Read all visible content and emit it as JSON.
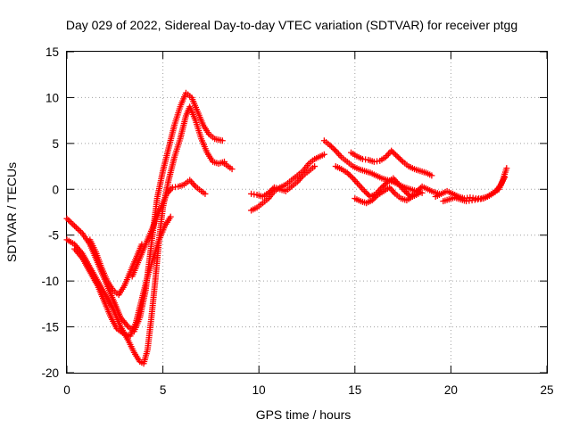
{
  "chart_data": {
    "type": "scatter",
    "title": "Day 029 of 2022, Sidereal Day-to-day VTEC variation (SDTVAR) for receiver ptgg",
    "xlabel": "GPS time / hours",
    "ylabel": "SDTVAR / TECUs",
    "xlim": [
      0,
      25
    ],
    "ylim": [
      -20,
      15
    ],
    "x_ticks": [
      "0",
      "5",
      "10",
      "15",
      "20",
      "25"
    ],
    "y_ticks": [
      "-20",
      "-15",
      "-10",
      "-5",
      "0",
      "5",
      "10",
      "15"
    ],
    "grid": true,
    "marker": "+",
    "series_color": "#ff0000",
    "segments": [
      {
        "name": "arc-1",
        "points": [
          [
            0.0,
            -3.2
          ],
          [
            0.4,
            -4.0
          ],
          [
            0.8,
            -4.8
          ],
          [
            1.2,
            -6.0
          ],
          [
            1.6,
            -8.0
          ],
          [
            2.0,
            -10.0
          ],
          [
            2.4,
            -12.0
          ],
          [
            2.8,
            -14.0
          ],
          [
            3.2,
            -15.0
          ],
          [
            3.5,
            -15.5
          ],
          [
            3.8,
            -14.0
          ],
          [
            4.1,
            -11.0
          ],
          [
            4.4,
            -6.0
          ],
          [
            4.7,
            -1.0
          ],
          [
            5.0,
            2.0
          ],
          [
            5.3,
            4.5
          ],
          [
            5.6,
            7.0
          ],
          [
            5.9,
            9.0
          ],
          [
            6.2,
            10.5
          ],
          [
            6.5,
            10.0
          ],
          [
            6.8,
            8.5
          ],
          [
            7.1,
            7.0
          ],
          [
            7.4,
            6.0
          ],
          [
            7.7,
            5.5
          ],
          [
            8.1,
            5.3
          ]
        ]
      },
      {
        "name": "arc-2",
        "points": [
          [
            0.0,
            -5.5
          ],
          [
            0.4,
            -6.0
          ],
          [
            0.8,
            -7.0
          ],
          [
            1.2,
            -8.5
          ],
          [
            1.6,
            -10.0
          ],
          [
            2.0,
            -11.5
          ],
          [
            2.4,
            -13.0
          ],
          [
            2.8,
            -15.0
          ],
          [
            3.2,
            -16.5
          ],
          [
            3.5,
            -17.8
          ],
          [
            3.8,
            -18.8
          ],
          [
            4.0,
            -19.0
          ],
          [
            4.2,
            -17.5
          ],
          [
            4.4,
            -14.0
          ],
          [
            4.6,
            -10.0
          ],
          [
            4.8,
            -5.5
          ],
          [
            5.0,
            -2.0
          ],
          [
            5.3,
            1.0
          ],
          [
            5.6,
            3.5
          ],
          [
            5.9,
            5.5
          ],
          [
            6.2,
            8.0
          ],
          [
            6.4,
            9.0
          ],
          [
            6.7,
            7.5
          ],
          [
            7.0,
            5.5
          ],
          [
            7.3,
            4.0
          ],
          [
            7.6,
            3.0
          ],
          [
            7.9,
            2.8
          ],
          [
            8.2,
            3.0
          ]
        ]
      },
      {
        "name": "arc-3",
        "points": [
          [
            0.4,
            -6.5
          ],
          [
            0.8,
            -7.5
          ],
          [
            1.2,
            -9.0
          ],
          [
            1.6,
            -10.5
          ],
          [
            2.0,
            -12.5
          ],
          [
            2.3,
            -14.0
          ],
          [
            2.6,
            -15.2
          ],
          [
            3.0,
            -15.8
          ],
          [
            3.3,
            -16.0
          ],
          [
            3.6,
            -14.5
          ],
          [
            3.9,
            -12.0
          ],
          [
            4.2,
            -9.5
          ],
          [
            4.5,
            -7.5
          ],
          [
            4.8,
            -5.5
          ],
          [
            5.1,
            -4.0
          ],
          [
            5.4,
            -3.0
          ]
        ]
      },
      {
        "name": "arc-4",
        "points": [
          [
            1.2,
            -5.5
          ],
          [
            1.5,
            -6.8
          ],
          [
            1.8,
            -8.5
          ],
          [
            2.1,
            -10.0
          ],
          [
            2.4,
            -11.0
          ],
          [
            2.7,
            -11.5
          ],
          [
            3.0,
            -10.5
          ],
          [
            3.3,
            -9.0
          ],
          [
            3.6,
            -7.5
          ],
          [
            3.9,
            -6.0
          ]
        ]
      },
      {
        "name": "arc-5",
        "points": [
          [
            3.4,
            -9.5
          ],
          [
            3.7,
            -8.0
          ],
          [
            4.0,
            -6.5
          ],
          [
            4.3,
            -5.0
          ],
          [
            4.6,
            -3.5
          ],
          [
            4.9,
            -2.0
          ],
          [
            5.2,
            -0.5
          ],
          [
            5.5,
            0.2
          ],
          [
            5.8,
            0.3
          ],
          [
            6.1,
            0.5
          ],
          [
            6.4,
            1.0
          ],
          [
            6.7,
            0.3
          ],
          [
            7.0,
            -0.2
          ],
          [
            7.2,
            -0.5
          ]
        ]
      },
      {
        "name": "arc-6",
        "points": [
          [
            8.2,
            2.8
          ],
          [
            8.4,
            2.5
          ],
          [
            8.6,
            2.2
          ]
        ]
      },
      {
        "name": "arc-7",
        "points": [
          [
            9.6,
            -2.3
          ],
          [
            9.9,
            -2.0
          ],
          [
            10.2,
            -1.5
          ],
          [
            10.5,
            -1.0
          ],
          [
            10.8,
            -0.2
          ],
          [
            11.1,
            0.2
          ],
          [
            11.4,
            0.5
          ],
          [
            11.7,
            1.0
          ],
          [
            12.0,
            1.5
          ],
          [
            12.3,
            2.0
          ],
          [
            12.6,
            2.8
          ],
          [
            12.9,
            3.3
          ],
          [
            13.2,
            3.6
          ],
          [
            13.4,
            3.8
          ]
        ]
      },
      {
        "name": "arc-8",
        "points": [
          [
            9.6,
            -0.5
          ],
          [
            9.9,
            -0.6
          ],
          [
            10.2,
            -0.8
          ],
          [
            10.5,
            -0.4
          ],
          [
            10.8,
            0.2
          ],
          [
            11.1,
            0.0
          ],
          [
            11.4,
            -0.2
          ],
          [
            11.7,
            0.3
          ],
          [
            12.0,
            0.8
          ],
          [
            12.3,
            1.5
          ],
          [
            12.6,
            2.0
          ],
          [
            12.9,
            2.5
          ]
        ]
      },
      {
        "name": "arc-9",
        "points": [
          [
            13.4,
            5.3
          ],
          [
            13.7,
            4.8
          ],
          [
            14.0,
            4.2
          ],
          [
            14.3,
            3.5
          ],
          [
            14.6,
            3.0
          ],
          [
            14.9,
            2.5
          ],
          [
            15.2,
            2.2
          ],
          [
            15.5,
            2.0
          ],
          [
            15.8,
            1.8
          ],
          [
            16.1,
            1.5
          ],
          [
            16.4,
            1.2
          ],
          [
            16.7,
            1.0
          ],
          [
            17.0,
            0.8
          ],
          [
            17.3,
            0.5
          ],
          [
            17.6,
            0.2
          ],
          [
            17.9,
            0.0
          ],
          [
            18.2,
            -0.2
          ],
          [
            18.5,
            -0.4
          ]
        ]
      },
      {
        "name": "arc-10",
        "points": [
          [
            14.0,
            2.5
          ],
          [
            14.3,
            2.2
          ],
          [
            14.6,
            1.8
          ],
          [
            14.9,
            1.2
          ],
          [
            15.2,
            0.5
          ],
          [
            15.5,
            -0.2
          ],
          [
            15.8,
            -0.8
          ],
          [
            16.1,
            -0.5
          ],
          [
            16.4,
            0.2
          ],
          [
            16.7,
            0.8
          ],
          [
            17.0,
            1.2
          ],
          [
            17.3,
            0.5
          ],
          [
            17.6,
            -0.2
          ],
          [
            17.9,
            -0.8
          ],
          [
            18.2,
            -0.3
          ],
          [
            18.5,
            0.3
          ],
          [
            18.8,
            0.0
          ],
          [
            19.1,
            -0.3
          ],
          [
            19.4,
            -0.5
          ]
        ]
      },
      {
        "name": "arc-11",
        "points": [
          [
            14.8,
            4.0
          ],
          [
            15.1,
            3.6
          ],
          [
            15.4,
            3.3
          ],
          [
            15.7,
            3.2
          ],
          [
            16.0,
            3.0
          ],
          [
            16.3,
            3.1
          ],
          [
            16.6,
            3.5
          ],
          [
            16.9,
            4.2
          ],
          [
            17.2,
            3.6
          ],
          [
            17.5,
            3.0
          ],
          [
            17.8,
            2.5
          ],
          [
            18.1,
            2.2
          ],
          [
            18.4,
            2.0
          ],
          [
            18.7,
            1.8
          ],
          [
            19.0,
            1.5
          ]
        ]
      },
      {
        "name": "arc-12",
        "points": [
          [
            15.0,
            -1.0
          ],
          [
            15.3,
            -1.3
          ],
          [
            15.6,
            -1.5
          ],
          [
            15.9,
            -1.2
          ],
          [
            16.2,
            -0.6
          ],
          [
            16.5,
            -0.2
          ],
          [
            16.8,
            0.2
          ],
          [
            17.1,
            -0.5
          ],
          [
            17.4,
            -1.0
          ],
          [
            17.7,
            -1.2
          ],
          [
            18.0,
            -0.8
          ],
          [
            18.3,
            -0.5
          ]
        ]
      },
      {
        "name": "arc-13",
        "points": [
          [
            19.2,
            -0.8
          ],
          [
            19.5,
            -0.5
          ],
          [
            19.8,
            -0.2
          ],
          [
            20.1,
            -0.5
          ],
          [
            20.4,
            -0.8
          ],
          [
            20.7,
            -1.0
          ],
          [
            21.0,
            -0.9
          ],
          [
            21.3,
            -1.0
          ],
          [
            21.6,
            -1.0
          ],
          [
            21.9,
            -0.8
          ],
          [
            22.2,
            -0.4
          ],
          [
            22.5,
            0.0
          ],
          [
            22.7,
            1.0
          ],
          [
            22.9,
            2.3
          ]
        ]
      },
      {
        "name": "arc-14",
        "points": [
          [
            19.6,
            -1.3
          ],
          [
            19.9,
            -1.1
          ],
          [
            20.2,
            -0.9
          ],
          [
            20.5,
            -1.1
          ],
          [
            20.8,
            -1.3
          ],
          [
            21.1,
            -1.2
          ],
          [
            21.4,
            -1.1
          ],
          [
            21.7,
            -1.0
          ],
          [
            22.0,
            -0.7
          ],
          [
            22.3,
            -0.3
          ],
          [
            22.6,
            0.5
          ],
          [
            22.8,
            1.3
          ]
        ]
      }
    ]
  }
}
